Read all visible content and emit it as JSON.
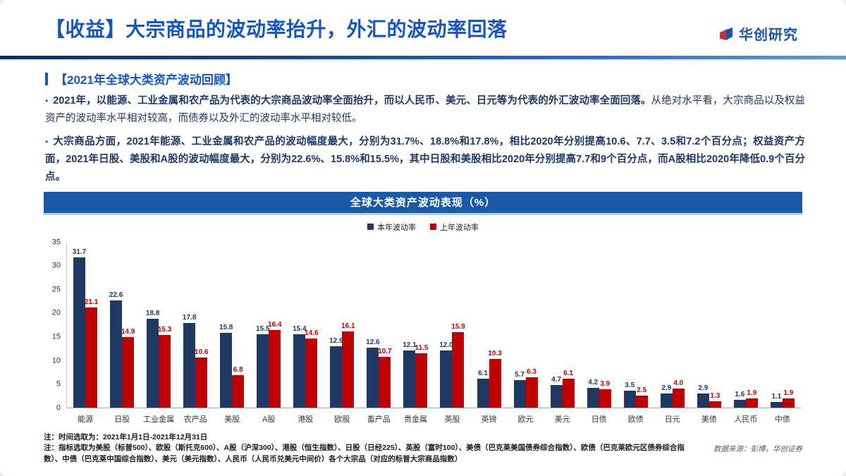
{
  "header": {
    "title": "【收益】大宗商品的波动率抬升，外汇的波动率回落",
    "brand": "华创研究"
  },
  "section": {
    "heading": "【2021年全球大类资产波动回顾】"
  },
  "ui": {
    "bullet_marker": "•"
  },
  "bullets": [
    {
      "bold": "2021年，以能源、工业金属和农产品为代表的大宗商品波动率全面抬升，而以人民币、美元、日元等为代表的外汇波动率全面回落。",
      "normal": "从绝对水平看，大宗商品以及权益资产的波动率水平相对较高，而债券以及外汇的波动率水平相对较低。"
    },
    {
      "bold": "大宗商品方面，2021年能源、工业金属和农产品的波动幅度最大，分别为31.7%、18.8%和17.8%，相比2020年分别提高10.6、7.7、3.5和7.2个百分点；权益资产方面，2021年日股、美股和A股的波动幅度最大，分别为22.6%、15.8%和15.5%，其中日股和美股相比2020年分别提高7.7和9个百分点，而A股相比2020年降低0.9个百分点。",
      "normal": ""
    }
  ],
  "chart_data": {
    "type": "bar",
    "title": "全球大类资产波动表现（%）",
    "categories": [
      "能源",
      "日股",
      "工业金属",
      "农产品",
      "美股",
      "A股",
      "港股",
      "欧股",
      "畜产品",
      "贵金属",
      "英股",
      "英镑",
      "欧元",
      "美元",
      "日债",
      "欧债",
      "日元",
      "美债",
      "人民币",
      "中债"
    ],
    "series": [
      {
        "name": "本年波动率",
        "color": "#1f3864",
        "values": [
          31.7,
          22.6,
          18.8,
          17.8,
          15.8,
          15.5,
          15.4,
          12.9,
          12.6,
          12.1,
          12.0,
          6.1,
          5.7,
          4.7,
          4.2,
          3.5,
          2.9,
          2.9,
          1.6,
          1.1
        ]
      },
      {
        "name": "上年波动率",
        "color": "#c00000",
        "values": [
          21.1,
          14.9,
          15.3,
          10.6,
          6.8,
          16.4,
          14.6,
          16.1,
          10.7,
          11.5,
          15.9,
          10.3,
          6.3,
          6.1,
          3.9,
          2.5,
          4.0,
          1.3,
          1.9,
          1.9
        ]
      }
    ],
    "xlabel": "",
    "ylabel": "",
    "ylim": [
      0,
      35
    ],
    "yticks": [
      0,
      5,
      10,
      15,
      20,
      25,
      30,
      35
    ],
    "grid": false,
    "legend_position": "top"
  },
  "notes": [
    "注：时间选取为：2021年1月1日-2021年12月31日",
    "注：指标选取为美股（标普500）、欧股（斯托克600）、A股（沪深300）、港股（恒生指数）、日股（日经225）、英股（富时100）、美债（巴克莱美国债券综合指数）、欧债（巴克莱欧元区债券综合指数）、中债（巴克莱中国综合指数）、美元（美元指数）、人民币（人民币兑美元中间价）各个大宗品（对应的标普大宗商品指数）"
  ],
  "source": "数据来源：彭博，华创证券",
  "colors": {
    "accent_blue": "#1456bd",
    "banner_blue": "#1959a8",
    "series_navy": "#1f3864",
    "series_red": "#c00000"
  }
}
